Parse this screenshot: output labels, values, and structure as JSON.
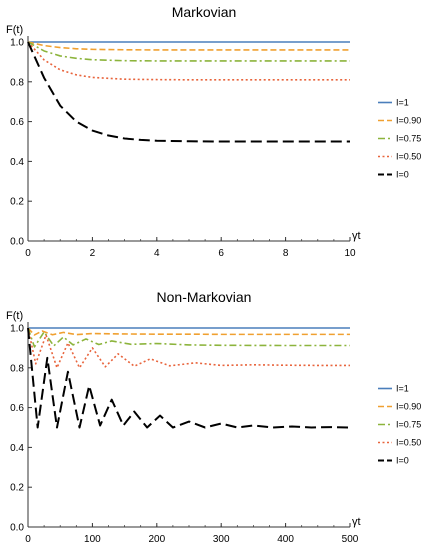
{
  "chart_data": [
    {
      "type": "line",
      "title": "Markovian",
      "xlabel": "γt",
      "ylabel": "F(t)",
      "xlim": [
        0,
        10
      ],
      "ylim": [
        0,
        1.0
      ],
      "xticks": [
        0,
        2,
        4,
        6,
        8,
        10
      ],
      "xtick_labels": [
        "0",
        "2",
        "4",
        "6",
        "8",
        "10"
      ],
      "yticks": [
        0,
        0.2,
        0.4,
        0.6,
        0.8,
        1.0
      ],
      "ytick_labels": [
        "0.0",
        "0.2",
        "0.4",
        "0.6",
        "0.8",
        "1.0"
      ],
      "legend_position": "right",
      "series": [
        {
          "name": "I=1",
          "color": "#4a7ebb",
          "dash": "solid",
          "x": [
            0,
            1,
            2,
            3,
            4,
            5,
            6,
            7,
            8,
            9,
            10
          ],
          "y": [
            1.0,
            1.0,
            1.0,
            1.0,
            1.0,
            1.0,
            1.0,
            1.0,
            1.0,
            1.0,
            1.0
          ]
        },
        {
          "name": "I=0.90",
          "color": "#f0a030",
          "dash": "dashed",
          "x": [
            0,
            0.5,
            1,
            1.5,
            2,
            3,
            4,
            5,
            6,
            7,
            8,
            9,
            10
          ],
          "y": [
            1.0,
            0.982,
            0.972,
            0.966,
            0.963,
            0.961,
            0.96,
            0.96,
            0.96,
            0.96,
            0.96,
            0.96,
            0.96
          ]
        },
        {
          "name": "I=0.75",
          "color": "#8cb43c",
          "dash": "dashdot",
          "x": [
            0,
            0.5,
            1,
            1.5,
            2,
            3,
            4,
            5,
            6,
            7,
            8,
            9,
            10
          ],
          "y": [
            1.0,
            0.955,
            0.93,
            0.918,
            0.911,
            0.906,
            0.905,
            0.905,
            0.905,
            0.905,
            0.905,
            0.905,
            0.905
          ]
        },
        {
          "name": "I=0.50",
          "color": "#e8643c",
          "dash": "dotted",
          "x": [
            0,
            0.5,
            1,
            1.5,
            2,
            3,
            4,
            5,
            6,
            7,
            8,
            9,
            10
          ],
          "y": [
            1.0,
            0.91,
            0.86,
            0.835,
            0.822,
            0.813,
            0.811,
            0.81,
            0.81,
            0.81,
            0.81,
            0.81,
            0.81
          ]
        },
        {
          "name": "I=0",
          "color": "#000000",
          "dash": "longdash",
          "x": [
            0,
            0.5,
            1,
            1.5,
            2,
            2.5,
            3,
            3.5,
            4,
            5,
            6,
            7,
            8,
            9,
            10
          ],
          "y": [
            1.0,
            0.82,
            0.68,
            0.6,
            0.555,
            0.53,
            0.515,
            0.508,
            0.504,
            0.501,
            0.5,
            0.5,
            0.5,
            0.5,
            0.5
          ]
        }
      ]
    },
    {
      "type": "line",
      "title": "Non-Markovian",
      "xlabel": "γt",
      "ylabel": "F(t)",
      "xlim": [
        0,
        500
      ],
      "ylim": [
        0,
        1.0
      ],
      "xticks": [
        0,
        100,
        200,
        300,
        400,
        500
      ],
      "xtick_labels": [
        "0",
        "100",
        "200",
        "300",
        "400",
        "500"
      ],
      "yticks": [
        0,
        0.2,
        0.4,
        0.6,
        0.8,
        1.0
      ],
      "ytick_labels": [
        "0.0",
        "0.2",
        "0.4",
        "0.6",
        "0.8",
        "1.0"
      ],
      "legend_position": "right",
      "series": [
        {
          "name": "I=1",
          "color": "#4a7ebb",
          "dash": "solid",
          "x": [
            0,
            100,
            200,
            300,
            400,
            500
          ],
          "y": [
            1.0,
            1.0,
            1.0,
            1.0,
            1.0,
            1.0
          ]
        },
        {
          "name": "I=0.90",
          "color": "#f0a030",
          "dash": "dashed",
          "x": [
            0,
            10,
            22,
            38,
            55,
            75,
            100,
            150,
            200,
            250,
            300,
            400,
            500
          ],
          "y": [
            1.0,
            0.965,
            0.985,
            0.966,
            0.978,
            0.967,
            0.972,
            0.97,
            0.969,
            0.969,
            0.968,
            0.968,
            0.968
          ]
        },
        {
          "name": "I=0.75",
          "color": "#8cb43c",
          "dash": "dashdot",
          "x": [
            0,
            10,
            25,
            40,
            55,
            70,
            90,
            110,
            130,
            160,
            200,
            250,
            300,
            400,
            500
          ],
          "y": [
            1.0,
            0.905,
            0.98,
            0.91,
            0.955,
            0.915,
            0.945,
            0.917,
            0.935,
            0.918,
            0.922,
            0.915,
            0.913,
            0.912,
            0.912
          ]
        },
        {
          "name": "I=0.50",
          "color": "#e8643c",
          "dash": "dotted",
          "x": [
            0,
            12,
            28,
            45,
            62,
            80,
            100,
            120,
            140,
            165,
            190,
            220,
            260,
            300,
            350,
            400,
            450,
            500
          ],
          "y": [
            1.0,
            0.82,
            0.965,
            0.8,
            0.925,
            0.8,
            0.9,
            0.805,
            0.87,
            0.808,
            0.845,
            0.81,
            0.825,
            0.812,
            0.815,
            0.813,
            0.812,
            0.812
          ]
        },
        {
          "name": "I=0",
          "color": "#000000",
          "dash": "longdash",
          "x": [
            0,
            15,
            30,
            45,
            62,
            80,
            95,
            112,
            130,
            148,
            165,
            185,
            205,
            225,
            250,
            275,
            300,
            325,
            350,
            380,
            410,
            440,
            470,
            500
          ],
          "y": [
            1.0,
            0.5,
            0.85,
            0.5,
            0.78,
            0.5,
            0.71,
            0.51,
            0.64,
            0.51,
            0.58,
            0.5,
            0.56,
            0.5,
            0.53,
            0.5,
            0.52,
            0.5,
            0.51,
            0.5,
            0.505,
            0.5,
            0.502,
            0.5
          ]
        }
      ]
    }
  ]
}
